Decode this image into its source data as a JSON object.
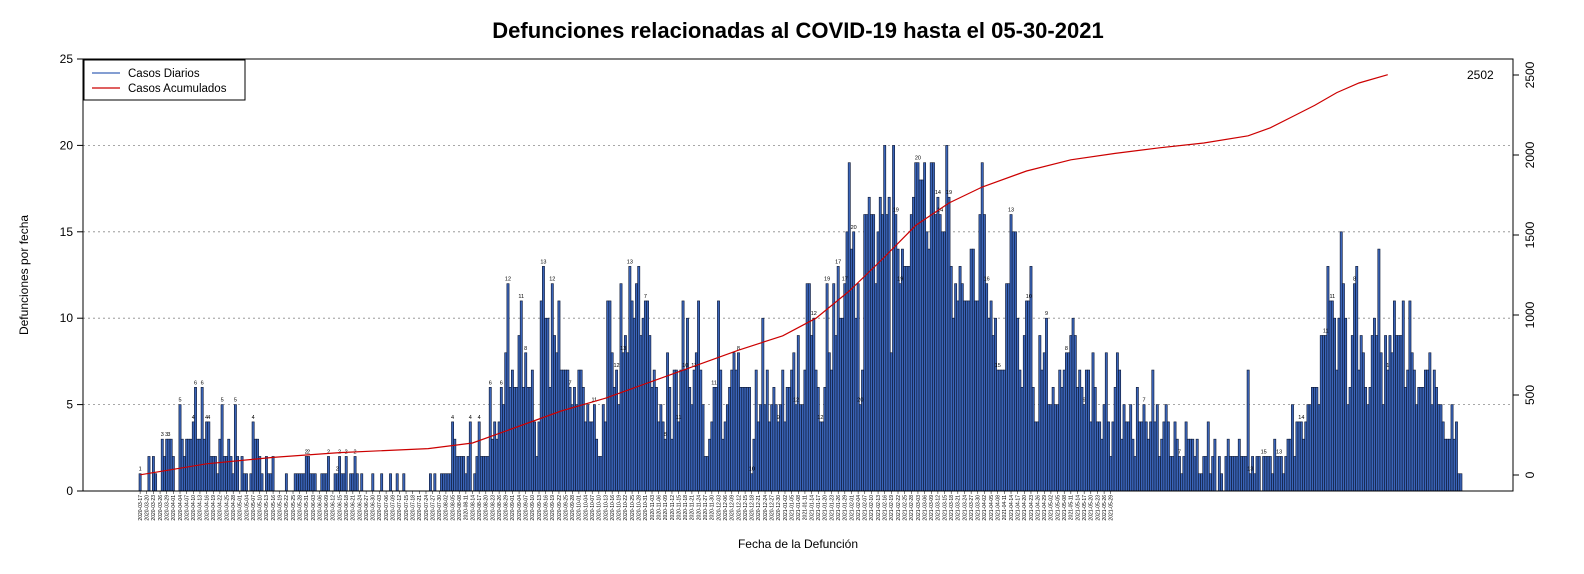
{
  "chart_data": {
    "type": "bar",
    "title": "Defunciones relacionadas al COVID-19 hasta el 05-30-2021",
    "xlabel": "Fecha de la Defunción",
    "ylabel": "Defunciones por fecha",
    "ylim": [
      0,
      25
    ],
    "y_ticks": [
      0,
      5,
      10,
      15,
      20,
      25
    ],
    "y2lim": [
      -100,
      2600
    ],
    "y2_ticks": [
      0,
      500,
      1000,
      1500,
      2000,
      2500
    ],
    "grid": "horizontal dotted",
    "legend_position": "top-left",
    "x_start_date": "2020-03-17",
    "x_end_date": "2021-05-30",
    "x_tick_labels": [
      "2020-03-17",
      "2020-03-20",
      "2020-03-23",
      "2020-03-26",
      "2020-03-29",
      "2020-04-01",
      "2020-04-04",
      "2020-04-07",
      "2020-04-10",
      "2020-04-13",
      "2020-04-16",
      "2020-04-19",
      "2020-04-22",
      "2020-04-25",
      "2020-04-28",
      "2020-05-01",
      "2020-05-04",
      "2020-05-07",
      "2020-05-10",
      "2020-05-13",
      "2020-05-16",
      "2020-05-19",
      "2020-05-22",
      "2020-05-25",
      "2020-05-28",
      "2020-05-31",
      "2020-06-03",
      "2020-06-06",
      "2020-06-09",
      "2020-06-12",
      "2020-06-15",
      "2020-06-18",
      "2020-06-21",
      "2020-06-24",
      "2020-06-27",
      "2020-06-30",
      "2020-07-03",
      "2020-07-06",
      "2020-07-09",
      "2020-07-12",
      "2020-07-15",
      "2020-07-18",
      "2020-07-21",
      "2020-07-24",
      "2020-07-27",
      "2020-07-30",
      "2020-08-02",
      "2020-08-05",
      "2020-08-08",
      "2020-08-11",
      "2020-08-14",
      "2020-08-17",
      "2020-08-20",
      "2020-08-23",
      "2020-08-26",
      "2020-08-29",
      "2020-09-01",
      "2020-09-04",
      "2020-09-07",
      "2020-09-10",
      "2020-09-13",
      "2020-09-16",
      "2020-09-19",
      "2020-09-22",
      "2020-09-25",
      "2020-09-28",
      "2020-10-01",
      "2020-10-04",
      "2020-10-07",
      "2020-10-10",
      "2020-10-13",
      "2020-10-16",
      "2020-10-19",
      "2020-10-22",
      "2020-10-25",
      "2020-10-28",
      "2020-10-31",
      "2020-11-03",
      "2020-11-06",
      "2020-11-09",
      "2020-11-12",
      "2020-11-15",
      "2020-11-18",
      "2020-11-21",
      "2020-11-24",
      "2020-11-27",
      "2020-11-30",
      "2020-12-03",
      "2020-12-06",
      "2020-12-09",
      "2020-12-12",
      "2020-12-15",
      "2020-12-18",
      "2020-12-21",
      "2020-12-24",
      "2020-12-27",
      "2020-12-30",
      "2021-01-02",
      "2021-01-05",
      "2021-01-08",
      "2021-01-11",
      "2021-01-14",
      "2021-01-17",
      "2021-01-20",
      "2021-01-23",
      "2021-01-26",
      "2021-01-29",
      "2021-02-01",
      "2021-02-04",
      "2021-02-07",
      "2021-02-10",
      "2021-02-13",
      "2021-02-16",
      "2021-02-19",
      "2021-02-22",
      "2021-02-25",
      "2021-02-28",
      "2021-03-03",
      "2021-03-06",
      "2021-03-09",
      "2021-03-12",
      "2021-03-15",
      "2021-03-18",
      "2021-03-21",
      "2021-03-24",
      "2021-03-27",
      "2021-03-30",
      "2021-04-02",
      "2021-04-05",
      "2021-04-08",
      "2021-04-11",
      "2021-04-14",
      "2021-04-17",
      "2021-04-20",
      "2021-04-23",
      "2021-04-26",
      "2021-04-29",
      "2021-05-02",
      "2021-05-05",
      "2021-05-08",
      "2021-05-11",
      "2021-05-14",
      "2021-05-17",
      "2021-05-20",
      "2021-05-23",
      "2021-05-26",
      "2021-05-29"
    ],
    "series": [
      {
        "name": "Casos Diarios",
        "color": "#3a64b8",
        "values": [
          1,
          0,
          0,
          0,
          2,
          0,
          2,
          1,
          0,
          0,
          3,
          2,
          3,
          3,
          3,
          2,
          0,
          0,
          5,
          3,
          2,
          3,
          3,
          3,
          4,
          6,
          3,
          3,
          6,
          3,
          4,
          4,
          2,
          2,
          2,
          1,
          3,
          5,
          2,
          2,
          3,
          2,
          1,
          5,
          2,
          0,
          2,
          1,
          1,
          0,
          1,
          4,
          3,
          3,
          2,
          1,
          0,
          2,
          1,
          1,
          2,
          0,
          0,
          0,
          0,
          0,
          1,
          0,
          0,
          0,
          1,
          1,
          1,
          1,
          1,
          2,
          2,
          1,
          1,
          1,
          0,
          0,
          1,
          1,
          1,
          2,
          0,
          0,
          1,
          1,
          2,
          1,
          1,
          2,
          0,
          1,
          1,
          2,
          1,
          0,
          1,
          0,
          0,
          0,
          0,
          1,
          0,
          0,
          0,
          1,
          0,
          0,
          0,
          1,
          0,
          0,
          1,
          0,
          0,
          1,
          0,
          0,
          0,
          0,
          0,
          0,
          0,
          0,
          0,
          0,
          0,
          1,
          0,
          1,
          0,
          0,
          1,
          1,
          1,
          1,
          1,
          4,
          3,
          2,
          2,
          2,
          2,
          1,
          2,
          4,
          0,
          1,
          2,
          4,
          2,
          2,
          2,
          2,
          6,
          3,
          4,
          3,
          4,
          6,
          5,
          8,
          12,
          6,
          7,
          6,
          6,
          9,
          11,
          6,
          8,
          6,
          6,
          7,
          4,
          2,
          4,
          11,
          13,
          10,
          10,
          6,
          12,
          9,
          8,
          11,
          7,
          7,
          7,
          7,
          6,
          5,
          6,
          5,
          7,
          7,
          6,
          4,
          5,
          4,
          4,
          5,
          3,
          2,
          2,
          5,
          4,
          11,
          11,
          8,
          6,
          7,
          5,
          12,
          8,
          9,
          8,
          13,
          11,
          10,
          12,
          13,
          9,
          10,
          11,
          11,
          9,
          6,
          7,
          6,
          4,
          5,
          4,
          3,
          8,
          6,
          3,
          7,
          7,
          4,
          7,
          11,
          7,
          10,
          6,
          5,
          7,
          8,
          11,
          7,
          5,
          2,
          2,
          3,
          4,
          6,
          6,
          11,
          7,
          3,
          4,
          5,
          6,
          7,
          8,
          7,
          8,
          6,
          6,
          6,
          6,
          6,
          1,
          3,
          7,
          4,
          5,
          10,
          5,
          7,
          4,
          5,
          6,
          5,
          4,
          5,
          7,
          4,
          6,
          6,
          7,
          8,
          5,
          9,
          5,
          5,
          7,
          12,
          12,
          9,
          10,
          7,
          6,
          4,
          4,
          6,
          12,
          8,
          7,
          12,
          9,
          13,
          10,
          10,
          12,
          15,
          19,
          14,
          15,
          10,
          12,
          5,
          7,
          16,
          16,
          17,
          16,
          16,
          12,
          15,
          17,
          16,
          20,
          16,
          17,
          8,
          20,
          16,
          14,
          12,
          14,
          13,
          13,
          13,
          16,
          17,
          19,
          19,
          18,
          18,
          19,
          15,
          14,
          19,
          19,
          16,
          17,
          16,
          15,
          15,
          20,
          17,
          13,
          10,
          12,
          11,
          13,
          12,
          11,
          11,
          11,
          14,
          14,
          11,
          11,
          16,
          19,
          16,
          12,
          10,
          11,
          9,
          10,
          7,
          7,
          7,
          7,
          12,
          12,
          16,
          15,
          15,
          10,
          7,
          6,
          9,
          11,
          11,
          13,
          6,
          4,
          4,
          9,
          7,
          8,
          10,
          5,
          5,
          6,
          5,
          5,
          7,
          6,
          7,
          8,
          8,
          9,
          10,
          9,
          6,
          7,
          6,
          5,
          7,
          7,
          4,
          8,
          6,
          4,
          4,
          3,
          5,
          8,
          4,
          2,
          4,
          6,
          8,
          7,
          3,
          5,
          4,
          4,
          5,
          3,
          2,
          6,
          4,
          4,
          5,
          4,
          3,
          4,
          7,
          4,
          5,
          2,
          3,
          4,
          5,
          4,
          2,
          2,
          4,
          3,
          2,
          1,
          2,
          4,
          3,
          3,
          3,
          2,
          3,
          1,
          1,
          2,
          2,
          4,
          1,
          2,
          3,
          0,
          2,
          1,
          0,
          2,
          3,
          2,
          2,
          2,
          2,
          3,
          2,
          2,
          2,
          7,
          1,
          2,
          1,
          2,
          2,
          0,
          2,
          2,
          2,
          2,
          1,
          3,
          2,
          2,
          2,
          1,
          2,
          3,
          3,
          5,
          2,
          4,
          4,
          4,
          3,
          4,
          5,
          5,
          6,
          6,
          6,
          5,
          9,
          9,
          9,
          13,
          11,
          11,
          10,
          7,
          10,
          15,
          12,
          10,
          5,
          6,
          9,
          12,
          13,
          7,
          9,
          8,
          6,
          5,
          6,
          9,
          10,
          9,
          14,
          8,
          5,
          9,
          7,
          9,
          8,
          11,
          9,
          9,
          9,
          11,
          6,
          7,
          11,
          8,
          7,
          5,
          6,
          6,
          6,
          7,
          7,
          8,
          5,
          7,
          6,
          5,
          5,
          4,
          3,
          3,
          3,
          5,
          3,
          4,
          1,
          1
        ],
        "value_labels": [
          [
            0,
            "1"
          ],
          [
            10,
            "3"
          ],
          [
            12,
            "3"
          ],
          [
            13,
            "3"
          ],
          [
            18,
            "5"
          ],
          [
            24,
            "4"
          ],
          [
            25,
            "6"
          ],
          [
            28,
            "6"
          ],
          [
            30,
            "4"
          ],
          [
            31,
            "4"
          ],
          [
            37,
            "5"
          ],
          [
            43,
            "5"
          ],
          [
            51,
            "4"
          ],
          [
            75,
            "2"
          ],
          [
            76,
            "2"
          ],
          [
            85,
            "2"
          ],
          [
            89,
            "2"
          ],
          [
            90,
            "2"
          ],
          [
            93,
            "2"
          ],
          [
            97,
            "2"
          ],
          [
            141,
            "4"
          ],
          [
            149,
            "4"
          ],
          [
            153,
            "4"
          ],
          [
            158,
            "6"
          ],
          [
            163,
            "6"
          ],
          [
            166,
            "12"
          ],
          [
            172,
            "11"
          ],
          [
            174,
            "8"
          ],
          [
            182,
            "13"
          ],
          [
            186,
            "12"
          ],
          [
            194,
            "7"
          ],
          [
            205,
            "11"
          ],
          [
            215,
            "12"
          ],
          [
            218,
            "13"
          ],
          [
            221,
            "13"
          ],
          [
            228,
            "7"
          ],
          [
            237,
            "8"
          ],
          [
            243,
            "11"
          ],
          [
            246,
            "10"
          ],
          [
            250,
            "11"
          ],
          [
            259,
            "11"
          ],
          [
            270,
            "8"
          ],
          [
            276,
            "10"
          ],
          [
            288,
            "9"
          ],
          [
            296,
            "12"
          ],
          [
            304,
            "12"
          ],
          [
            307,
            "12"
          ],
          [
            310,
            "19"
          ],
          [
            315,
            "17"
          ],
          [
            318,
            "17"
          ],
          [
            322,
            "20"
          ],
          [
            325,
            "20"
          ],
          [
            341,
            "19"
          ],
          [
            343,
            "19"
          ],
          [
            351,
            "20"
          ],
          [
            360,
            "14"
          ],
          [
            361,
            "14"
          ],
          [
            365,
            "19"
          ],
          [
            382,
            "16"
          ],
          [
            387,
            "15"
          ],
          [
            393,
            "13"
          ],
          [
            401,
            "10"
          ],
          [
            409,
            "9"
          ],
          [
            418,
            "8"
          ],
          [
            426,
            "9"
          ],
          [
            453,
            "7"
          ],
          [
            469,
            "7"
          ],
          [
            501,
            "13"
          ],
          [
            507,
            "15"
          ],
          [
            514,
            "13"
          ],
          [
            524,
            "14"
          ],
          [
            535,
            "11"
          ],
          [
            538,
            "11"
          ],
          [
            548,
            "8"
          ],
          [
            563,
            "1"
          ]
        ]
      },
      {
        "name": "Casos Acumulados",
        "color": "#cc0000",
        "end_label": "2502",
        "cumulative_points": [
          [
            0,
            1
          ],
          [
            30,
            70
          ],
          [
            60,
            110
          ],
          [
            90,
            140
          ],
          [
            130,
            165
          ],
          [
            150,
            200
          ],
          [
            170,
            300
          ],
          [
            190,
            400
          ],
          [
            210,
            480
          ],
          [
            230,
            580
          ],
          [
            250,
            680
          ],
          [
            270,
            780
          ],
          [
            290,
            870
          ],
          [
            305,
            980
          ],
          [
            320,
            1150
          ],
          [
            335,
            1350
          ],
          [
            350,
            1560
          ],
          [
            365,
            1700
          ],
          [
            380,
            1800
          ],
          [
            400,
            1900
          ],
          [
            420,
            1970
          ],
          [
            440,
            2010
          ],
          [
            460,
            2045
          ],
          [
            480,
            2075
          ],
          [
            500,
            2120
          ],
          [
            510,
            2170
          ],
          [
            520,
            2240
          ],
          [
            530,
            2310
          ],
          [
            540,
            2390
          ],
          [
            550,
            2450
          ],
          [
            563,
            2502
          ]
        ]
      }
    ]
  }
}
